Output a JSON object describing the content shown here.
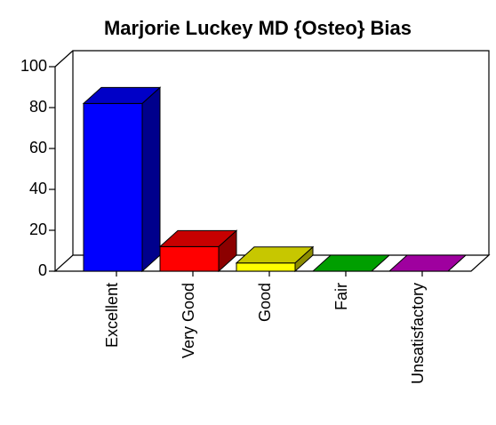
{
  "chart_data": {
    "type": "bar3d",
    "title": "Marjorie Luckey MD {Osteo} Bias",
    "categories": [
      "Excellent",
      "Very Good",
      "Good",
      "Fair",
      "Unsatisfactory"
    ],
    "values": [
      82,
      12,
      4,
      0,
      0
    ],
    "colors": [
      "#0000ff",
      "#ff0000",
      "#ffff00",
      "#00cc00",
      "#cc00cc"
    ],
    "ylim": [
      0,
      100
    ],
    "yticks": [
      0,
      20,
      40,
      60,
      80,
      100
    ]
  }
}
